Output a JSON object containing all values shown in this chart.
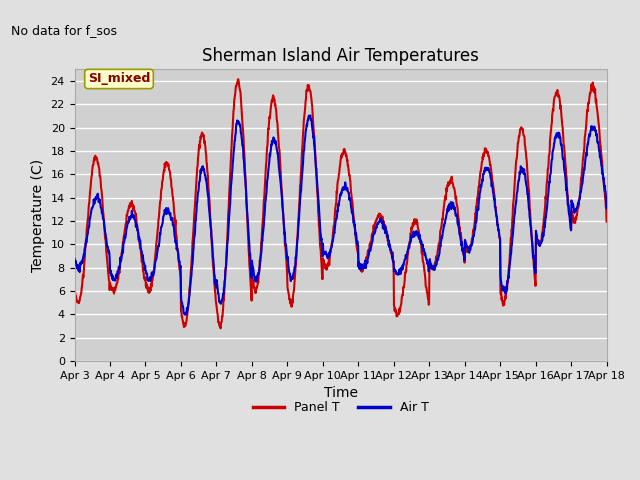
{
  "title": "Sherman Island Air Temperatures",
  "xlabel": "Time",
  "ylabel": "Temperature (C)",
  "no_data_label": "No data for f_sos",
  "legend_label": "SI_mixed",
  "panel_color": "#cc0000",
  "air_color": "#0000cc",
  "ylim": [
    0,
    25
  ],
  "yticks": [
    0,
    2,
    4,
    6,
    8,
    10,
    12,
    14,
    16,
    18,
    20,
    22,
    24
  ],
  "xtick_labels": [
    "Apr 3",
    "Apr 4",
    "Apr 5",
    "Apr 6",
    "Apr 7",
    "Apr 8",
    "Apr 9",
    "Apr 10",
    "Apr 11",
    "Apr 12",
    "Apr 13",
    "Apr 14",
    "Apr 15",
    "Apr 16",
    "Apr 17",
    "Apr 18"
  ],
  "bg_color": "#e0e0e0",
  "plot_bg_color": "#d0d0d0",
  "grid_color": "#ffffff",
  "title_fontsize": 12,
  "axis_fontsize": 10,
  "tick_fontsize": 8,
  "legend_box_color": "#ffffcc",
  "legend_box_edge": "#999900",
  "legend_text_color": "#880000",
  "linewidth": 1.5
}
